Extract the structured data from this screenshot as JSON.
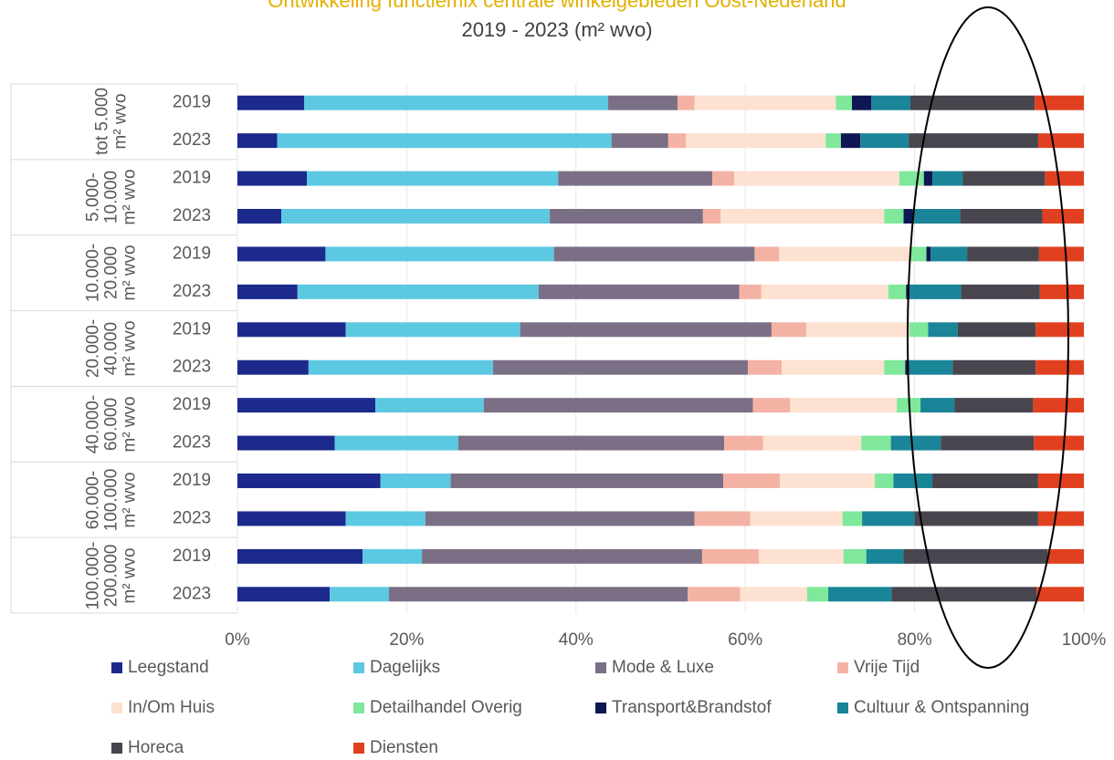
{
  "chart_data": {
    "type": "stacked-bar-horizontal",
    "title": "Ontwikkeling functiemix centrale winkelgebieden Oost-Nederland",
    "subtitle": "2019 - 2023 (m² wvo)",
    "groups": [
      "tot 5.000 m² wvo",
      "5.000-10.000 m² wvo",
      "10.000-20.000 m² wvo",
      "20.000-40.000 m² wvo",
      "40.000-60.000 m² wvo",
      "60.000-100.000 m² wvo",
      "100.000-200.000 m² wvo"
    ],
    "categories": [
      "2019",
      "2023",
      "2019",
      "2023",
      "2019",
      "2023",
      "2019",
      "2023",
      "2019",
      "2023",
      "2019",
      "2023",
      "2019",
      "2023"
    ],
    "xlim": [
      0,
      100
    ],
    "xticks": [
      {
        "value": 0,
        "label": "0%"
      },
      {
        "value": 20,
        "label": "20%"
      },
      {
        "value": 40,
        "label": "40%"
      },
      {
        "value": 60,
        "label": "60%"
      },
      {
        "value": 80,
        "label": "80%"
      },
      {
        "value": 100,
        "label": "100%"
      }
    ],
    "grid": true,
    "legend": "bottom",
    "series": [
      {
        "name": "Leegstand",
        "color": "#1b2a8c",
        "values": [
          7.9,
          4.7,
          8.2,
          5.2,
          10.4,
          7.1,
          12.8,
          8.4,
          16.3,
          11.5,
          16.9,
          12.8,
          14.8,
          10.9
        ]
      },
      {
        "name": "Dagelijks",
        "color": "#5cc8e2",
        "values": [
          35.9,
          39.5,
          29.7,
          31.7,
          27.0,
          28.5,
          20.6,
          21.8,
          12.8,
          14.6,
          8.3,
          9.4,
          7.0,
          7.0
        ]
      },
      {
        "name": "Mode & Luxe",
        "color": "#7b6f86",
        "values": [
          8.2,
          6.7,
          18.2,
          18.1,
          23.7,
          23.7,
          29.7,
          30.1,
          31.8,
          31.4,
          32.2,
          31.8,
          33.1,
          35.3
        ]
      },
      {
        "name": "Vrije Tijd",
        "color": "#f4b2a5",
        "values": [
          2.0,
          2.1,
          2.6,
          2.1,
          2.9,
          2.6,
          4.1,
          4.0,
          4.4,
          4.6,
          6.7,
          6.6,
          6.7,
          6.2
        ]
      },
      {
        "name": "In/Om Huis",
        "color": "#fde1d1",
        "values": [
          16.7,
          16.5,
          19.5,
          19.3,
          15.5,
          15.0,
          12.2,
          12.1,
          12.6,
          11.6,
          11.2,
          10.9,
          10.0,
          7.9
        ]
      },
      {
        "name": "Detailhandel Overig",
        "color": "#7fe89b",
        "values": [
          1.9,
          1.8,
          2.9,
          2.3,
          1.9,
          2.1,
          2.2,
          2.5,
          2.8,
          3.5,
          2.2,
          2.3,
          2.7,
          2.5
        ]
      },
      {
        "name": "Transport&Brandstof",
        "color": "#0e1654",
        "values": [
          2.3,
          2.3,
          1.0,
          1.1,
          0.5,
          0.4,
          0,
          0.3,
          0,
          0,
          0,
          0,
          0,
          0
        ]
      },
      {
        "name": "Cultuur & Ontspanning",
        "color": "#1a8498",
        "values": [
          4.6,
          5.7,
          3.6,
          5.6,
          4.3,
          6.1,
          3.5,
          5.3,
          4.0,
          5.9,
          4.6,
          6.2,
          4.4,
          7.5
        ]
      },
      {
        "name": "Horeca",
        "color": "#48454e",
        "values": [
          14.7,
          15.3,
          9.7,
          9.7,
          8.5,
          9.3,
          9.2,
          9.8,
          9.3,
          11.0,
          12.5,
          14.6,
          17.0,
          17.1
        ]
      },
      {
        "name": "Diensten",
        "color": "#e0401f",
        "values": [
          5.8,
          5.4,
          4.6,
          4.9,
          5.3,
          5.2,
          5.7,
          5.7,
          6.0,
          5.9,
          5.4,
          5.4,
          4.3,
          5.6
        ]
      }
    ]
  }
}
